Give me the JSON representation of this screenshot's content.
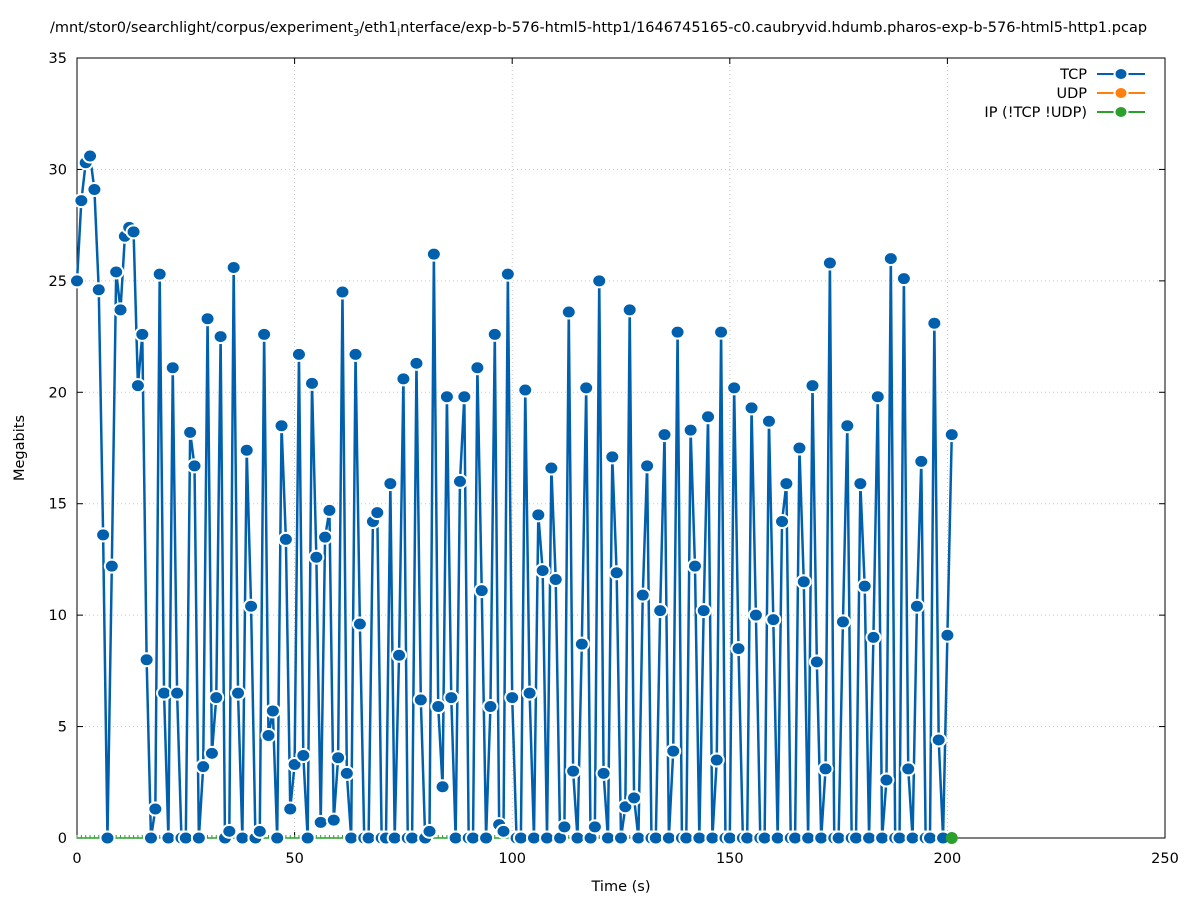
{
  "chart_data": {
    "type": "line",
    "title_parts": [
      {
        "text": "/mnt/stor0/searchlight/corpus/experiment",
        "sub": false
      },
      {
        "text": "3",
        "sub": true
      },
      {
        "text": "/eth1",
        "sub": false
      },
      {
        "text": "i",
        "sub": true
      },
      {
        "text": "nterface/exp-b-576-html5-http1/1646745165-c0.caubryvid.hdumb.pharos-exp-b-576-html5-http1.pcap",
        "sub": false
      }
    ],
    "xlabel": "Time (s)",
    "ylabel": "Megabits",
    "xlim": [
      0,
      250
    ],
    "ylim": [
      0,
      35
    ],
    "xticks": [
      0,
      50,
      100,
      150,
      200,
      250
    ],
    "yticks": [
      0,
      5,
      10,
      15,
      20,
      25,
      30,
      35
    ],
    "grid": true,
    "legend_position": "top-right",
    "series": [
      {
        "name": "TCP",
        "color": "#0060ad",
        "x_start": 0,
        "x_step": 1,
        "values": [
          25.0,
          28.6,
          30.3,
          30.6,
          29.1,
          24.6,
          13.6,
          0,
          12.2,
          25.4,
          23.7,
          27.0,
          27.4,
          27.2,
          20.3,
          22.6,
          8.0,
          0,
          1.3,
          25.3,
          6.5,
          0,
          21.1,
          6.5,
          0,
          0,
          18.2,
          16.7,
          0,
          3.2,
          23.3,
          3.8,
          6.3,
          22.5,
          0,
          0.3,
          25.6,
          6.5,
          0,
          17.4,
          10.4,
          0,
          0.3,
          22.6,
          4.6,
          5.7,
          0,
          18.5,
          13.4,
          1.3,
          3.3,
          21.7,
          3.7,
          0,
          20.4,
          12.6,
          0.7,
          13.5,
          14.7,
          0.8,
          3.6,
          24.5,
          2.9,
          0,
          21.7,
          9.6,
          0,
          0,
          14.2,
          14.6,
          0,
          0,
          15.9,
          0,
          8.2,
          20.6,
          0,
          0,
          21.3,
          6.2,
          0,
          0.3,
          26.2,
          5.9,
          2.3,
          19.8,
          6.3,
          0,
          16.0,
          19.8,
          0,
          0,
          21.1,
          11.1,
          0,
          5.9,
          22.6,
          0.6,
          0.3,
          25.3,
          6.3,
          0,
          0,
          20.1,
          6.5,
          0,
          14.5,
          12.0,
          0,
          16.6,
          11.6,
          0,
          0.5,
          23.6,
          3.0,
          0,
          8.7,
          20.2,
          0,
          0.5,
          25.0,
          2.9,
          0,
          17.1,
          11.9,
          0,
          1.4,
          23.7,
          1.8,
          0,
          10.9,
          16.7,
          0,
          0,
          10.2,
          18.1,
          0,
          3.9,
          22.7,
          0,
          0,
          18.3,
          12.2,
          0,
          10.2,
          18.9,
          0,
          3.5,
          22.7,
          0,
          0,
          20.2,
          8.5,
          0,
          0,
          19.3,
          10.0,
          0,
          0,
          18.7,
          9.8,
          0,
          14.2,
          15.9,
          0,
          0,
          17.5,
          11.5,
          0,
          20.3,
          7.9,
          0,
          3.1,
          25.8,
          0,
          0,
          9.7,
          18.5,
          0,
          0,
          15.9,
          11.3,
          0,
          9.0,
          19.8,
          0,
          2.6,
          26.0,
          0,
          0,
          25.1,
          3.1,
          0,
          10.4,
          16.9,
          0,
          0,
          23.1,
          4.4,
          0,
          9.1,
          18.1
        ]
      },
      {
        "name": "UDP",
        "color": "#ff7f0e",
        "x_start": 0,
        "x_step": 1,
        "values": []
      },
      {
        "name": "IP (!TCP  !UDP)",
        "color": "#2ca02c",
        "x_start": 0,
        "x_step": 1,
        "zero_through": 201,
        "points": [
          [
            201,
            0
          ]
        ]
      }
    ]
  }
}
